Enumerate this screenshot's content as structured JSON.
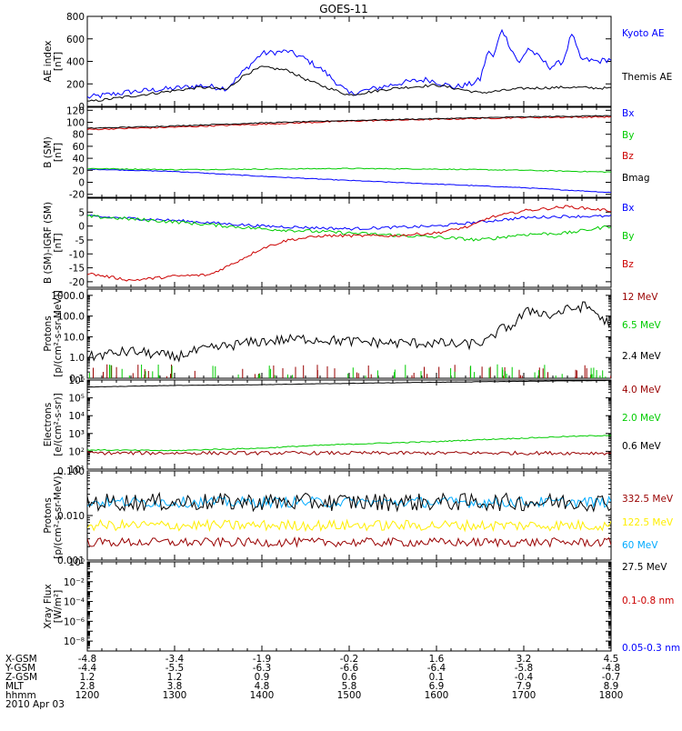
{
  "title": "GOES-11",
  "x_axis": {
    "hours": [
      12,
      13,
      14,
      15,
      16,
      17,
      18
    ],
    "rows": [
      {
        "label": "X-GSM",
        "values": [
          "-4.8",
          "-3.4",
          "-1.9",
          "-0.2",
          "1.6",
          "3.2",
          "4.5"
        ]
      },
      {
        "label": "Y-GSM",
        "values": [
          "-4.4",
          "-5.5",
          "-6.3",
          "-6.6",
          "-6.4",
          "-5.8",
          "-4.8"
        ]
      },
      {
        "label": "Z-GSM",
        "values": [
          "1.2",
          "1.2",
          "0.9",
          "0.6",
          "0.1",
          "-0.4",
          "-0.7"
        ]
      },
      {
        "label": "MLT",
        "values": [
          "2.8",
          "3.8",
          "4.8",
          "5.8",
          "6.9",
          "7.9",
          "8.9"
        ]
      },
      {
        "label": "hhmm",
        "values": [
          "1200",
          "1300",
          "1400",
          "1500",
          "1600",
          "1700",
          "1800"
        ]
      }
    ],
    "date": "2010 Apr 03"
  },
  "chart_data": [
    {
      "type": "line",
      "ylabel": [
        "AE index",
        "[nT]"
      ],
      "scale": "linear",
      "ylim": [
        0,
        800
      ],
      "yticks": [
        0,
        200,
        400,
        600,
        800
      ],
      "ytick_labels": [
        "0",
        "200",
        "400",
        "600",
        "800"
      ],
      "series": [
        {
          "name": "Kyoto AE",
          "color": "#0000ff",
          "x": [
            12.0,
            12.5,
            13.0,
            13.3,
            13.6,
            13.8,
            14.0,
            14.3,
            14.5,
            14.7,
            15.0,
            15.3,
            15.6,
            15.9,
            16.2,
            16.4,
            16.5,
            16.55,
            16.6,
            16.65,
            16.75,
            16.85,
            16.95,
            17.05,
            17.3,
            17.45,
            17.55,
            17.65,
            17.85,
            18.0
          ],
          "y": [
            80,
            130,
            160,
            185,
            160,
            320,
            470,
            490,
            420,
            320,
            110,
            160,
            210,
            240,
            170,
            200,
            240,
            380,
            500,
            430,
            690,
            520,
            380,
            520,
            350,
            400,
            650,
            420,
            400,
            420
          ],
          "noise": 25
        },
        {
          "name": "Themis AE",
          "color": "#000000",
          "x": [
            12.0,
            12.5,
            13.0,
            13.3,
            13.6,
            13.8,
            14.0,
            14.3,
            14.5,
            14.7,
            15.0,
            15.5,
            16.0,
            16.5,
            17.0,
            17.5,
            18.0
          ],
          "y": [
            40,
            90,
            140,
            170,
            150,
            280,
            350,
            320,
            240,
            180,
            100,
            160,
            190,
            120,
            160,
            170,
            160
          ],
          "noise": 12
        }
      ]
    },
    {
      "type": "line",
      "ylabel": [
        "B (SM)",
        "[nT]"
      ],
      "scale": "linear",
      "ylim": [
        -25,
        125
      ],
      "yticks": [
        -20,
        0,
        20,
        40,
        60,
        80,
        100,
        120
      ],
      "ytick_labels": [
        "-20",
        "0",
        "20",
        "40",
        "60",
        "80",
        "100",
        "120"
      ],
      "series": [
        {
          "name": "Bx",
          "color": "#0000ff",
          "x": [
            12,
            13,
            14,
            15,
            16,
            17,
            18
          ],
          "y": [
            22,
            18,
            10,
            3,
            -3,
            -9,
            -17
          ],
          "noise": 0.6
        },
        {
          "name": "By",
          "color": "#00cc00",
          "x": [
            12,
            13,
            14,
            15,
            16,
            17,
            18
          ],
          "y": [
            23,
            21,
            22,
            23,
            22,
            20,
            17
          ],
          "noise": 0.8
        },
        {
          "name": "Bz",
          "color": "#cc0000",
          "x": [
            12,
            13,
            14,
            15,
            16,
            17,
            18
          ],
          "y": [
            88,
            92,
            97,
            102,
            105,
            108,
            109
          ],
          "noise": 1.2
        },
        {
          "name": "Bmag",
          "color": "#000000",
          "x": [
            12,
            13,
            14,
            15,
            16,
            17,
            18
          ],
          "y": [
            90,
            94,
            99,
            103,
            106,
            109,
            111
          ],
          "noise": 0.8
        }
      ]
    },
    {
      "type": "line",
      "ylabel": [
        "B (SM)-IGRF (SM)",
        "[nT]"
      ],
      "scale": "linear",
      "ylim": [
        -22,
        10
      ],
      "yticks": [
        -20,
        -15,
        -10,
        -5,
        0,
        5
      ],
      "ytick_labels": [
        "-20",
        "-15",
        "-10",
        "-5",
        "0",
        "5"
      ],
      "series": [
        {
          "name": "Bx",
          "color": "#0000ff",
          "x": [
            12,
            13,
            14,
            15,
            16,
            16.5,
            17,
            17.5,
            18
          ],
          "y": [
            3.5,
            2,
            0,
            -1,
            0,
            1.5,
            3,
            3.5,
            3.5
          ],
          "noise": 0.5
        },
        {
          "name": "By",
          "color": "#00cc00",
          "x": [
            12,
            13,
            14,
            15,
            16,
            16.5,
            17,
            17.5,
            18
          ],
          "y": [
            3.5,
            1.5,
            -1,
            -2.5,
            -4,
            -5,
            -3,
            -2.5,
            0
          ],
          "noise": 0.6
        },
        {
          "name": "Bz",
          "color": "#cc0000",
          "x": [
            12,
            12.5,
            13,
            13.4,
            13.7,
            14,
            14.3,
            14.7,
            15,
            15.5,
            16,
            16.4,
            16.6,
            17,
            17.5,
            18
          ],
          "y": [
            -17,
            -19.5,
            -18,
            -17.5,
            -13,
            -8,
            -5,
            -3.5,
            -3.5,
            -3.5,
            -2.5,
            0,
            3,
            5.5,
            7,
            5.5
          ],
          "noise": 0.5
        }
      ]
    },
    {
      "type": "line",
      "ylabel": [
        "Protons",
        "[p/(cm²-s-sr-MeV)]"
      ],
      "scale": "log",
      "ylim": [
        0.1,
        2000
      ],
      "yticks": [
        0.1,
        1,
        10,
        100,
        1000
      ],
      "ytick_labels": [
        "0.1",
        "1.0",
        "10.0",
        "100.0",
        "1000.0"
      ],
      "series": [
        {
          "name": "12 MeV",
          "color": "#990000",
          "x": [
            12,
            18
          ],
          "y": [
            0.14,
            0.14
          ],
          "noise": 0,
          "spikes": true
        },
        {
          "name": "6.5 MeV",
          "color": "#00cc00",
          "x": [
            12,
            18
          ],
          "y": [
            0.14,
            0.14
          ],
          "noise": 0,
          "spikes": true
        },
        {
          "name": "2.4 MeV",
          "color": "#000000",
          "x": [
            12.0,
            12.5,
            13.0,
            13.5,
            14.0,
            14.5,
            15.0,
            15.5,
            16.0,
            16.3,
            16.6,
            16.9,
            17.1,
            17.3,
            17.5,
            17.7,
            17.9,
            18.0
          ],
          "y": [
            1,
            2,
            1,
            3,
            6,
            8,
            6,
            5,
            5,
            4,
            6,
            40,
            200,
            100,
            200,
            300,
            60,
            50
          ],
          "noise": 0.25,
          "log_noise": true
        }
      ]
    },
    {
      "type": "line",
      "ylabel": [
        "Electrons",
        "[e/(cm²-s-sr)]"
      ],
      "scale": "log",
      "ylim": [
        10,
        1000000
      ],
      "yticks": [
        10,
        100,
        1000,
        10000,
        100000,
        1000000
      ],
      "ytick_labels": [
        "10¹",
        "10²",
        "10³",
        "10⁴",
        "10⁵",
        "10⁶"
      ],
      "series": [
        {
          "name": "4.0 MeV",
          "color": "#990000",
          "x": [
            12,
            18
          ],
          "y": [
            80,
            80
          ],
          "noise": 0.1,
          "log_noise": true
        },
        {
          "name": "2.0 MeV",
          "color": "#00cc00",
          "x": [
            12,
            13,
            14,
            15,
            16,
            17,
            18
          ],
          "y": [
            120,
            110,
            150,
            250,
            350,
            550,
            800
          ],
          "noise": 0.03,
          "log_noise": true
        },
        {
          "name": "0.6 MeV",
          "color": "#000000",
          "x": [
            12,
            13,
            14,
            15,
            16,
            17,
            18
          ],
          "y": [
            400000,
            500000,
            550000,
            650000,
            750000,
            850000,
            950000
          ],
          "noise": 0.01,
          "log_noise": true
        }
      ]
    },
    {
      "type": "line",
      "ylabel": [
        "Protons",
        "[p/(cm²-s-sr-MeV)]"
      ],
      "scale": "log",
      "ylim": [
        0.001,
        0.1
      ],
      "yticks": [
        0.001,
        0.01,
        0.1
      ],
      "ytick_labels": [
        "0.001",
        "0.010",
        "0.100"
      ],
      "series": [
        {
          "name": "332.5 MeV",
          "color": "#990000",
          "x": [
            12,
            18
          ],
          "y": [
            0.0025,
            0.0025
          ],
          "noise": 0.1,
          "log_noise": true
        },
        {
          "name": "122.5 MeV",
          "color": "#ffee00",
          "x": [
            12,
            18
          ],
          "y": [
            0.006,
            0.006
          ],
          "noise": 0.12,
          "log_noise": true
        },
        {
          "name": "60 MeV",
          "color": "#00aaff",
          "x": [
            12,
            18
          ],
          "y": [
            0.02,
            0.02
          ],
          "noise": 0.12,
          "log_noise": true
        },
        {
          "name": "27.5 MeV",
          "color": "#000000",
          "x": [
            12,
            18
          ],
          "y": [
            0.02,
            0.02
          ],
          "noise": 0.2,
          "log_noise": true
        }
      ]
    },
    {
      "type": "line",
      "ylabel": [
        "Xray Flux",
        "[W/m²]"
      ],
      "scale": "log",
      "ylim": [
        1e-09,
        1
      ],
      "yticks": [
        1e-08,
        1e-07,
        1e-06,
        1e-05,
        0.0001,
        0.001,
        0.01,
        0.1,
        1
      ],
      "ytick_labels": [
        "10⁻⁸",
        "",
        "10⁻⁶",
        "",
        "10⁻⁴",
        "",
        "10⁻²",
        "",
        "10⁰"
      ],
      "series": [
        {
          "name": "0.1-0.8 nm",
          "color": "#cc0000",
          "x": [],
          "y": []
        },
        {
          "name": "0.05-0.3 nm",
          "color": "#0000ff",
          "x": [],
          "y": []
        }
      ]
    }
  ]
}
